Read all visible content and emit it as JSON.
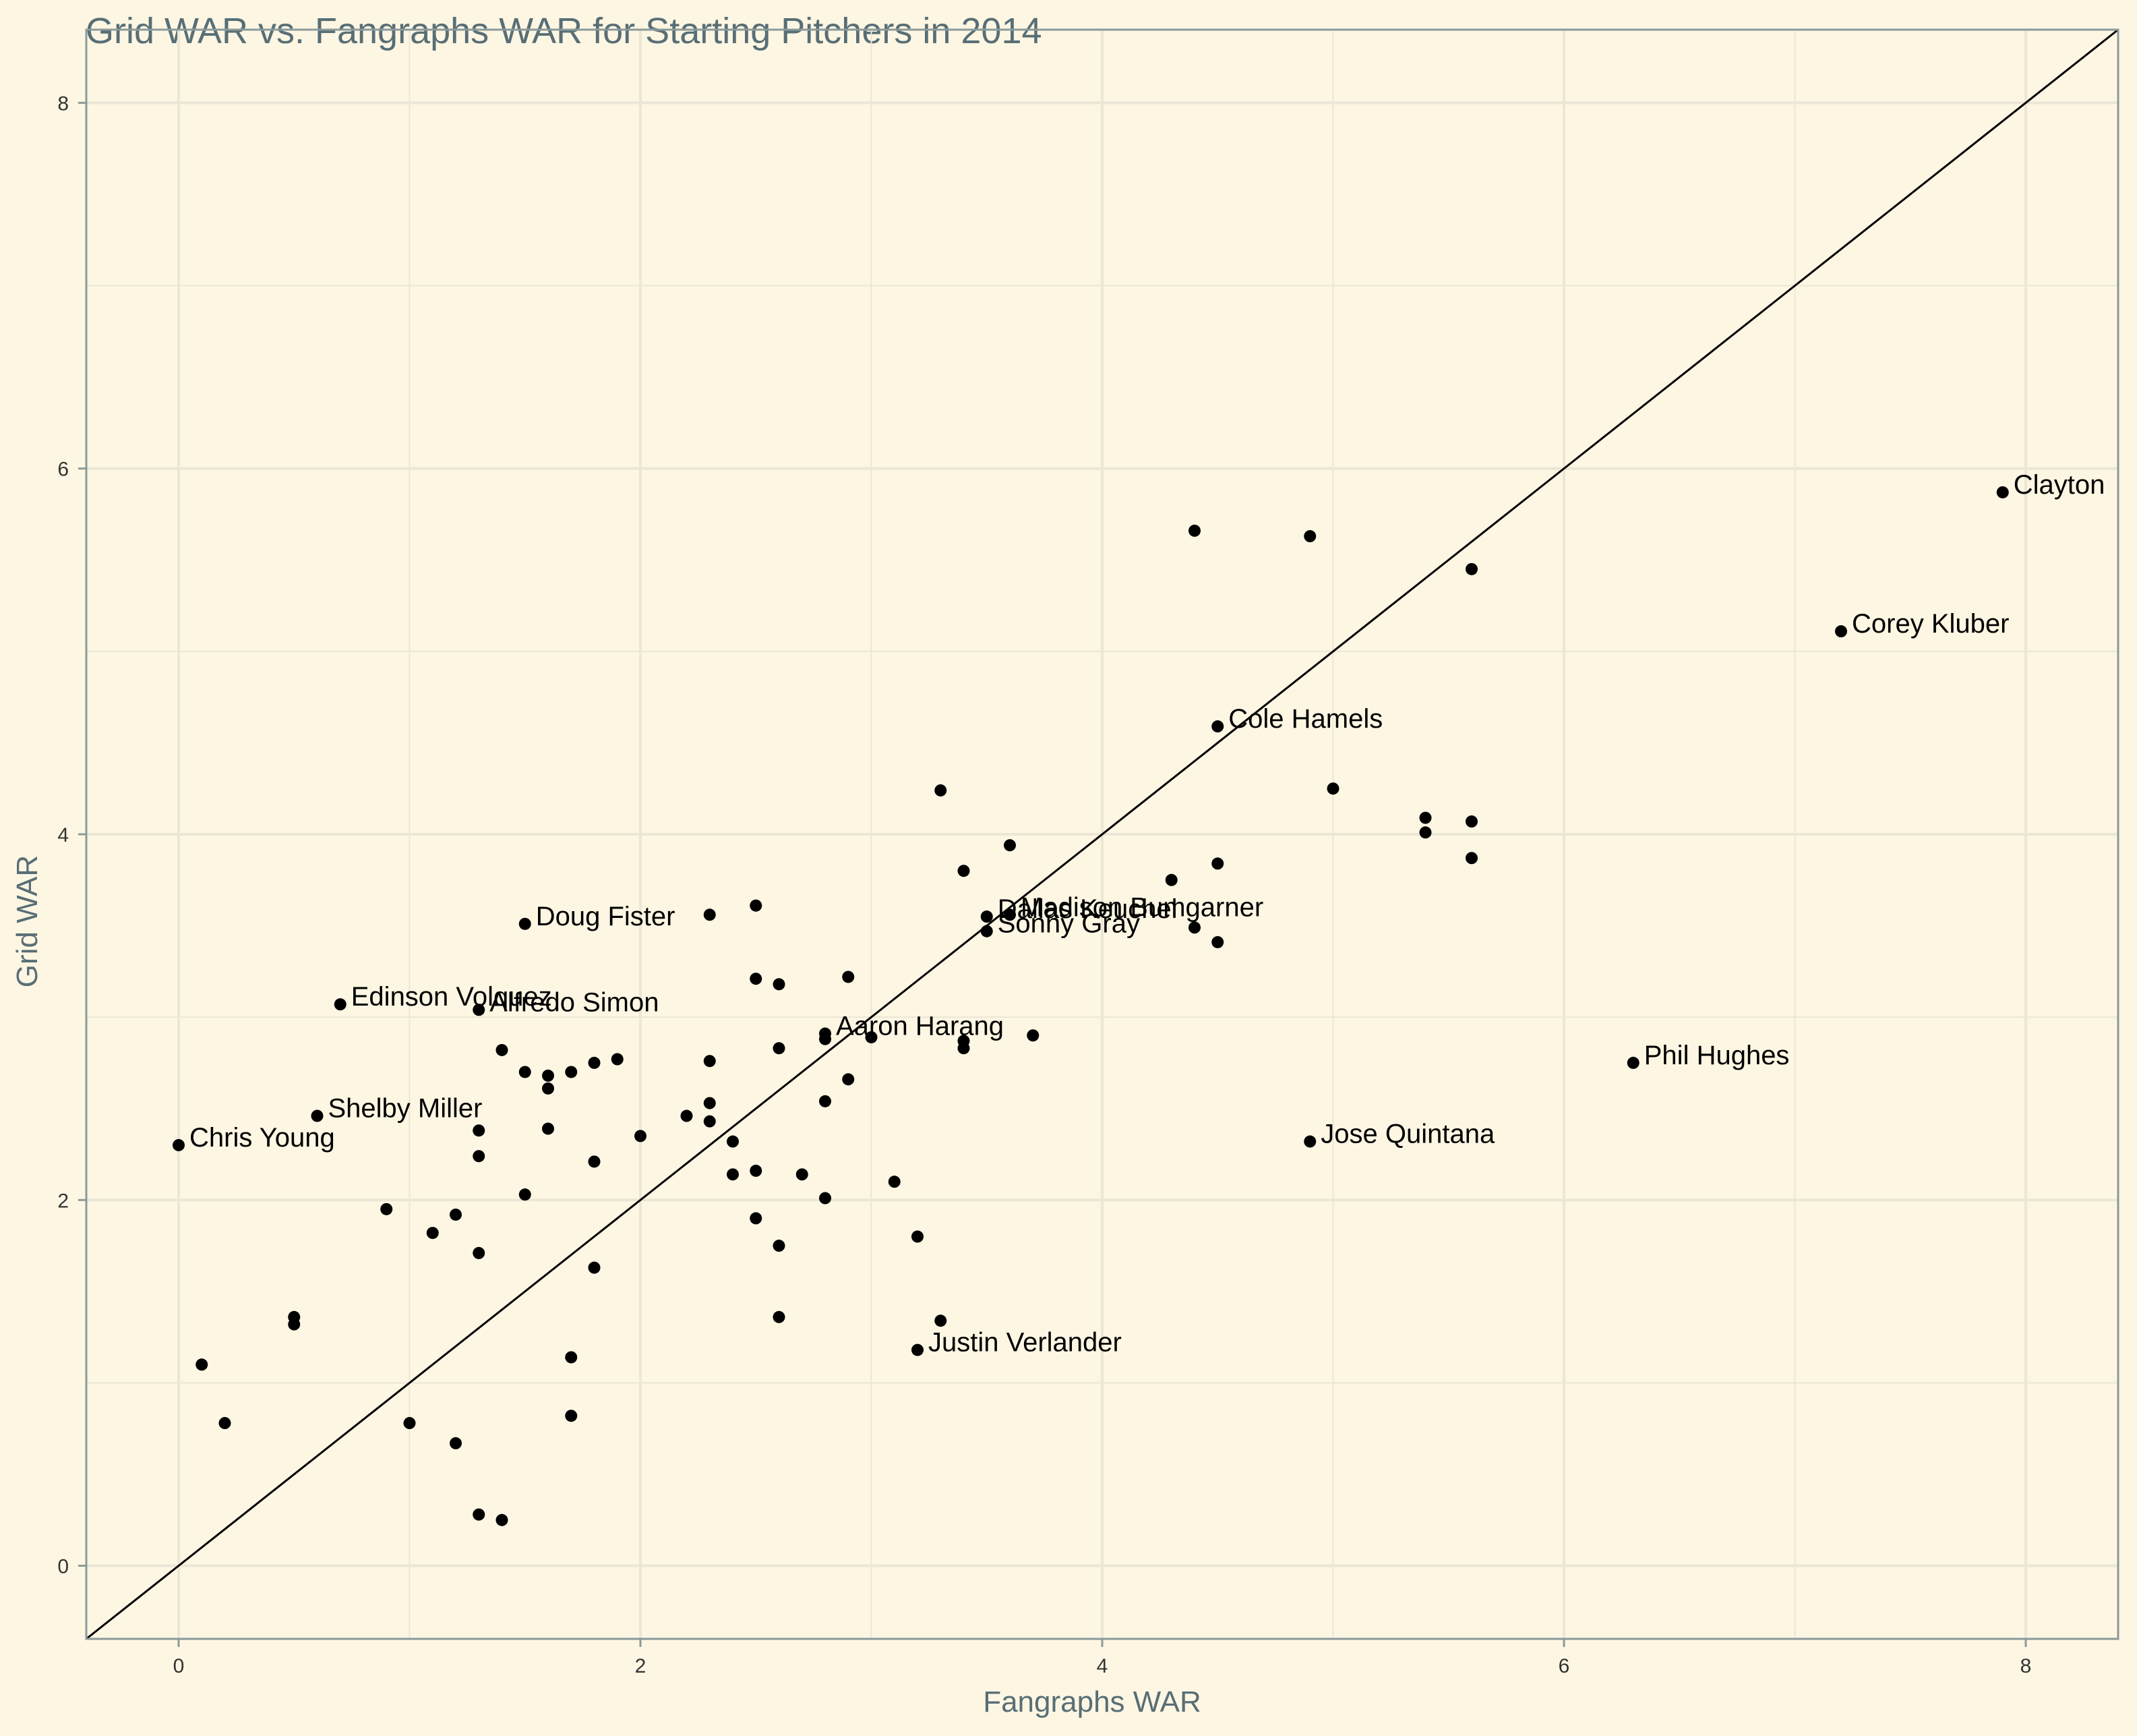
{
  "chart_data": {
    "type": "scatter",
    "title": "Grid WAR vs. Fangraphs WAR for Starting Pitchers in 2014",
    "xlabel": "Fangraphs WAR",
    "ylabel": "Grid WAR",
    "xlim": [
      -0.4,
      8.4
    ],
    "ylim": [
      -0.4,
      8.4
    ],
    "x_ticks": [
      0,
      2,
      4,
      6,
      8
    ],
    "y_ticks": [
      0,
      2,
      4,
      6,
      8
    ],
    "x_tick_labels": [
      "0",
      "2",
      "4",
      "6",
      "8"
    ],
    "y_tick_labels": [
      "0",
      "2",
      "4",
      "6",
      "8"
    ],
    "grid": true,
    "reference_line": {
      "type": "y=x"
    },
    "colors": {
      "background": "#fdf6e3",
      "grid": "#ebe6d6",
      "panel_border": "#8a9a9a",
      "point": "#000000",
      "title": "#586e75"
    },
    "labeled_points": [
      {
        "name": "Clayton",
        "x": 7.9,
        "y": 5.87
      },
      {
        "name": "Corey Kluber",
        "x": 7.2,
        "y": 5.11
      },
      {
        "name": "Cole Hamels",
        "x": 4.5,
        "y": 4.59
      },
      {
        "name": "Doug Fister",
        "x": 1.5,
        "y": 3.51
      },
      {
        "name": "Dallas Keuchel",
        "x": 3.5,
        "y": 3.55
      },
      {
        "name": "Madison Bumgarner",
        "x": 3.6,
        "y": 3.56
      },
      {
        "name": "Sonny Gray",
        "x": 3.5,
        "y": 3.47
      },
      {
        "name": "Edinson Volquez",
        "x": 0.7,
        "y": 3.07
      },
      {
        "name": "Alfredo Simon",
        "x": 1.3,
        "y": 3.04
      },
      {
        "name": "Aaron Harang",
        "x": 2.8,
        "y": 2.91
      },
      {
        "name": "Phil Hughes",
        "x": 6.3,
        "y": 2.75
      },
      {
        "name": "Shelby Miller",
        "x": 0.6,
        "y": 2.46
      },
      {
        "name": "Jose Quintana",
        "x": 4.9,
        "y": 2.32
      },
      {
        "name": "Chris Young",
        "x": 0.0,
        "y": 2.3
      },
      {
        "name": "Justin Verlander",
        "x": 3.2,
        "y": 1.18
      }
    ],
    "points": [
      {
        "x": 4.4,
        "y": 5.66
      },
      {
        "x": 4.9,
        "y": 5.63
      },
      {
        "x": 5.6,
        "y": 5.45
      },
      {
        "x": 5.0,
        "y": 4.25
      },
      {
        "x": 5.4,
        "y": 4.09
      },
      {
        "x": 5.6,
        "y": 4.07
      },
      {
        "x": 5.4,
        "y": 4.01
      },
      {
        "x": 5.6,
        "y": 3.87
      },
      {
        "x": 4.5,
        "y": 3.84
      },
      {
        "x": 3.3,
        "y": 4.24
      },
      {
        "x": 3.6,
        "y": 3.94
      },
      {
        "x": 3.4,
        "y": 3.8
      },
      {
        "x": 4.3,
        "y": 3.75
      },
      {
        "x": 4.4,
        "y": 3.49
      },
      {
        "x": 4.5,
        "y": 3.41
      },
      {
        "x": 2.5,
        "y": 3.61
      },
      {
        "x": 2.3,
        "y": 3.56
      },
      {
        "x": 2.9,
        "y": 3.22
      },
      {
        "x": 2.5,
        "y": 3.21
      },
      {
        "x": 2.6,
        "y": 3.18
      },
      {
        "x": 3.7,
        "y": 2.9
      },
      {
        "x": 3.4,
        "y": 2.87
      },
      {
        "x": 3.4,
        "y": 2.83
      },
      {
        "x": 3.0,
        "y": 2.89
      },
      {
        "x": 2.8,
        "y": 2.88
      },
      {
        "x": 2.6,
        "y": 2.83
      },
      {
        "x": 2.3,
        "y": 2.76
      },
      {
        "x": 1.4,
        "y": 2.82
      },
      {
        "x": 1.9,
        "y": 2.77
      },
      {
        "x": 1.8,
        "y": 2.75
      },
      {
        "x": 1.7,
        "y": 2.7
      },
      {
        "x": 1.5,
        "y": 2.7
      },
      {
        "x": 1.6,
        "y": 2.68
      },
      {
        "x": 1.6,
        "y": 2.61
      },
      {
        "x": 2.9,
        "y": 2.66
      },
      {
        "x": 2.8,
        "y": 2.54
      },
      {
        "x": 2.3,
        "y": 2.53
      },
      {
        "x": 2.2,
        "y": 2.46
      },
      {
        "x": 2.3,
        "y": 2.43
      },
      {
        "x": 1.3,
        "y": 2.38
      },
      {
        "x": 1.6,
        "y": 2.39
      },
      {
        "x": 2.0,
        "y": 2.35
      },
      {
        "x": 2.4,
        "y": 2.32
      },
      {
        "x": 1.3,
        "y": 2.24
      },
      {
        "x": 1.8,
        "y": 2.21
      },
      {
        "x": 2.5,
        "y": 2.16
      },
      {
        "x": 2.4,
        "y": 2.14
      },
      {
        "x": 2.7,
        "y": 2.14
      },
      {
        "x": 3.1,
        "y": 2.1
      },
      {
        "x": 1.5,
        "y": 2.03
      },
      {
        "x": 2.8,
        "y": 2.01
      },
      {
        "x": 0.9,
        "y": 1.95
      },
      {
        "x": 1.2,
        "y": 1.92
      },
      {
        "x": 2.5,
        "y": 1.9
      },
      {
        "x": 1.1,
        "y": 1.82
      },
      {
        "x": 3.2,
        "y": 1.8
      },
      {
        "x": 2.6,
        "y": 1.75
      },
      {
        "x": 1.3,
        "y": 1.71
      },
      {
        "x": 1.8,
        "y": 1.63
      },
      {
        "x": 2.6,
        "y": 1.36
      },
      {
        "x": 3.3,
        "y": 1.34
      },
      {
        "x": 0.5,
        "y": 1.36
      },
      {
        "x": 0.5,
        "y": 1.32
      },
      {
        "x": 1.7,
        "y": 1.14
      },
      {
        "x": 0.1,
        "y": 1.1
      },
      {
        "x": 1.7,
        "y": 0.82
      },
      {
        "x": 0.2,
        "y": 0.78
      },
      {
        "x": 1.0,
        "y": 0.78
      },
      {
        "x": 1.2,
        "y": 0.67
      },
      {
        "x": 1.3,
        "y": 0.28
      },
      {
        "x": 1.4,
        "y": 0.25
      }
    ]
  }
}
